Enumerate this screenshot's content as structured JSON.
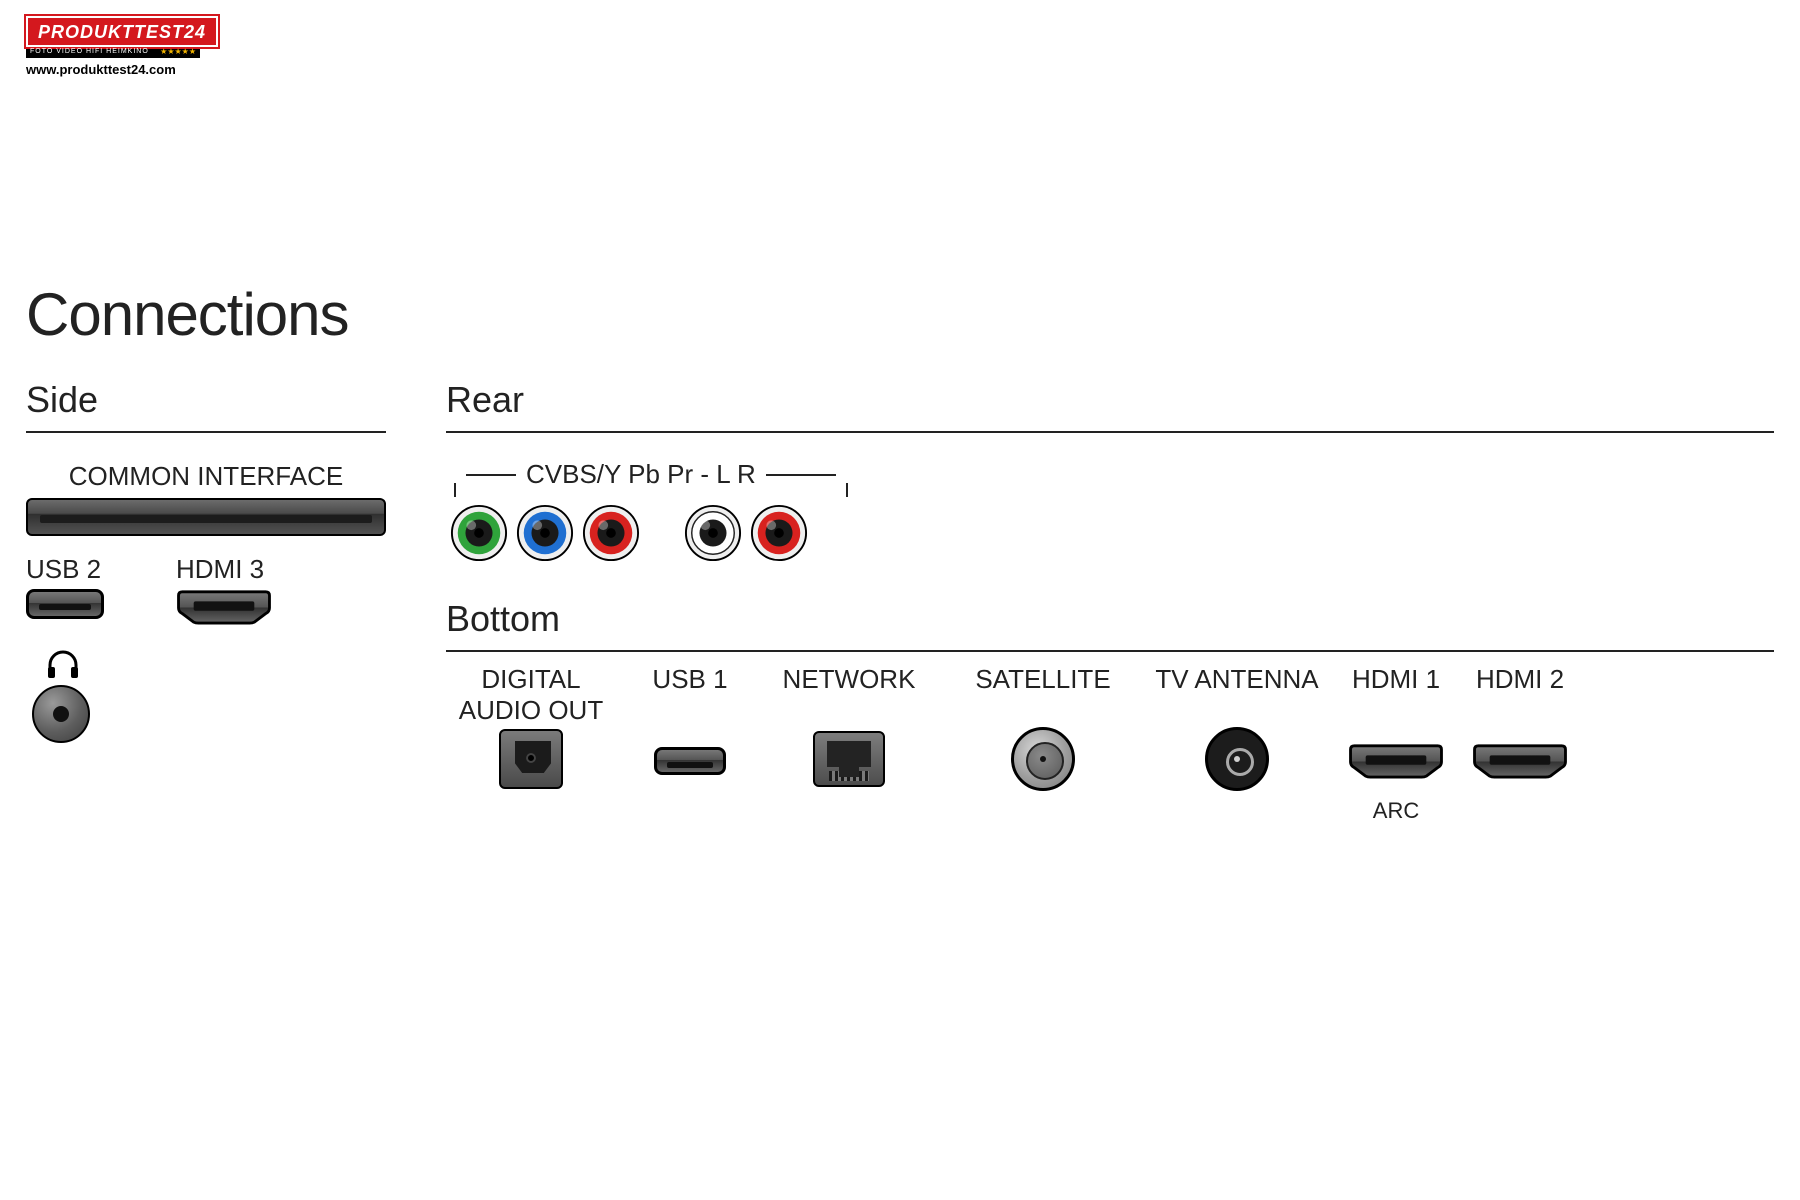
{
  "logo": {
    "brand": "PRODUKTTEST24",
    "subline": "FOTO  VIDEO  HIFI  HEIMKINO",
    "url": "www.produkttest24.com",
    "brand_bg": "#d4181e",
    "brand_fg": "#ffffff",
    "star_color": "#f2b400"
  },
  "page": {
    "title": "Connections",
    "title_fontsize": 60,
    "section_fontsize": 36,
    "label_fontsize": 26,
    "rule_color": "#222222",
    "background": "#ffffff",
    "text_color": "#222222"
  },
  "sections": {
    "side": {
      "heading": "Side",
      "common_interface_label": "COMMON INTERFACE",
      "usb2_label": "USB 2",
      "hdmi3_label": "HDMI 3"
    },
    "rear": {
      "heading": "Rear",
      "cvbs_label": "CVBS/Y Pb Pr - L R",
      "rca_jacks": [
        {
          "ring": "#2fa33b",
          "name": "cvbs-y"
        },
        {
          "ring": "#1f6fd1",
          "name": "pb"
        },
        {
          "ring": "#d8221f",
          "name": "pr"
        },
        {
          "ring": "#ffffff",
          "name": "audio-l",
          "ring_stroke": "#222222"
        },
        {
          "ring": "#d8221f",
          "name": "audio-r"
        }
      ]
    },
    "bottom": {
      "heading": "Bottom",
      "ports": [
        {
          "label": "DIGITAL\nAUDIO OUT",
          "type": "toslink"
        },
        {
          "label": "USB 1",
          "type": "usb"
        },
        {
          "label": "NETWORK",
          "type": "ethernet"
        },
        {
          "label": "SATELLITE",
          "type": "sat-f"
        },
        {
          "label": "TV ANTENNA",
          "type": "coax"
        },
        {
          "label": "HDMI 1",
          "type": "hdmi",
          "sublabel": "ARC"
        },
        {
          "label": "HDMI 2",
          "type": "hdmi"
        }
      ]
    }
  },
  "port_style": {
    "metal_gradient_top": "#777777",
    "metal_gradient_bottom": "#333333",
    "outline": "#000000",
    "hole": "#111111",
    "hdmi_fill": "url(#gmetal)"
  }
}
